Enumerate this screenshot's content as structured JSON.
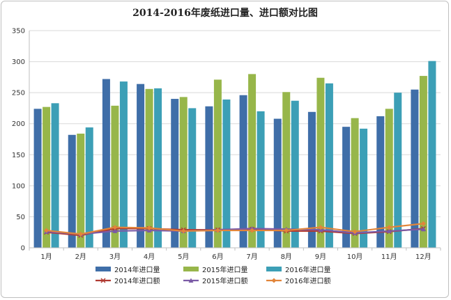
{
  "chart_data": {
    "type": "bar",
    "title": "2014-2016年废纸进口量、进口额对比图",
    "categories": [
      "1月",
      "2月",
      "3月",
      "4月",
      "5月",
      "6月",
      "7月",
      "8月",
      "9月",
      "10月",
      "11月",
      "12月"
    ],
    "ylim": [
      0,
      350
    ],
    "yticks": [
      0,
      50,
      100,
      150,
      200,
      250,
      300,
      350
    ],
    "grid": true,
    "legend_position": "bottom",
    "bar_series": [
      {
        "name": "2014年进口量",
        "color": "#3f6ea8",
        "values": [
          224,
          182,
          272,
          264,
          240,
          228,
          246,
          208,
          219,
          195,
          212,
          255
        ]
      },
      {
        "name": "2015年进口量",
        "color": "#97b64a",
        "values": [
          227,
          184,
          229,
          256,
          243,
          271,
          280,
          251,
          274,
          209,
          224,
          277
        ]
      },
      {
        "name": "2016年进口量",
        "color": "#3c9fb6",
        "values": [
          233,
          194,
          268,
          257,
          225,
          239,
          220,
          237,
          265,
          192,
          250,
          301
        ]
      }
    ],
    "line_series": [
      {
        "name": "2014年进口额",
        "color": "#b03a32",
        "marker": "x",
        "values": [
          25,
          20,
          31,
          31,
          29,
          29,
          30,
          27,
          27,
          23,
          26,
          31
        ]
      },
      {
        "name": "2015年进口额",
        "color": "#7b5ba6",
        "marker": "triangle",
        "values": [
          26,
          22,
          27,
          28,
          27,
          29,
          31,
          30,
          29,
          24,
          27,
          30
        ]
      },
      {
        "name": "2016年进口额",
        "color": "#e2853a",
        "marker": "diamond",
        "values": [
          28,
          22,
          33,
          32,
          27,
          28,
          28,
          28,
          33,
          26,
          33,
          39
        ]
      }
    ]
  }
}
